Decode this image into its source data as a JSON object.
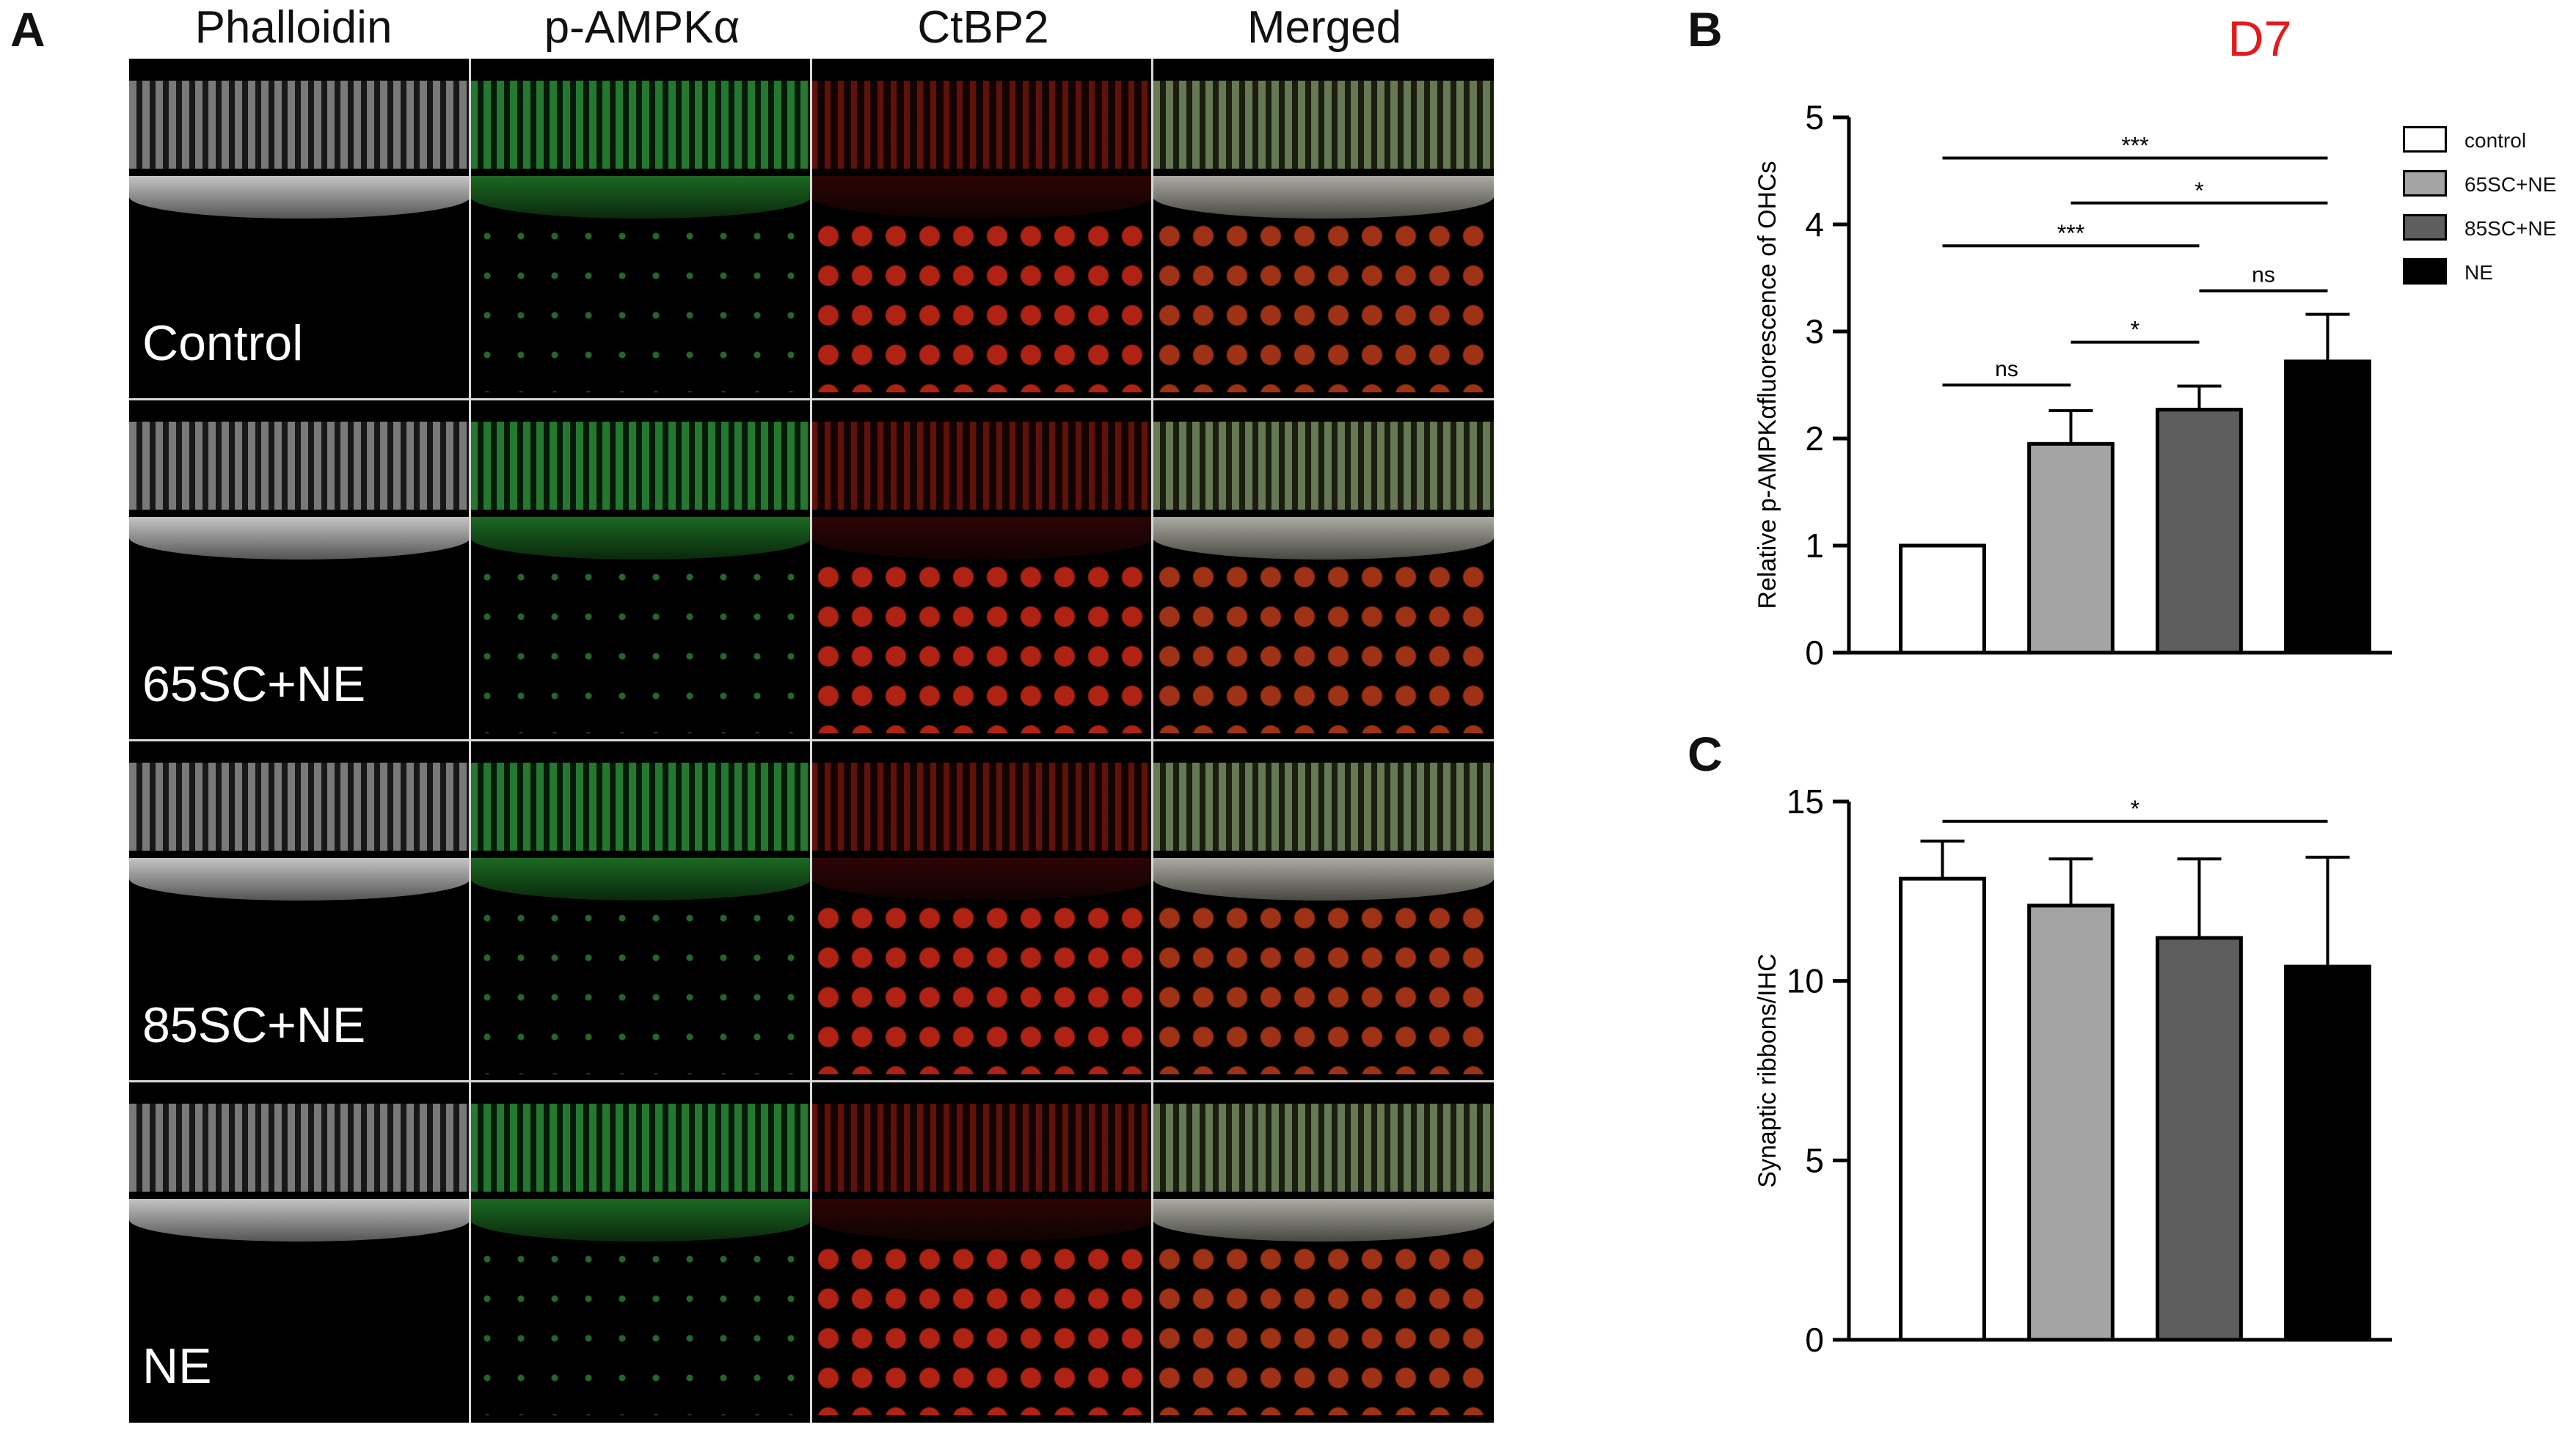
{
  "panel_a": {
    "letter": "A",
    "columns": [
      {
        "header": "Phalloidin",
        "channel": "gray",
        "color": "#d9d9d9"
      },
      {
        "header": "p-AMPKα",
        "channel": "green",
        "color": "#33c24a"
      },
      {
        "header": "CtBP2",
        "channel": "red",
        "color": "#e8321e"
      },
      {
        "header": "Merged",
        "channel": "merged",
        "color": "#c0b070"
      }
    ],
    "rows": [
      {
        "label": "Control"
      },
      {
        "label": "65SC+NE"
      },
      {
        "label": "85SC+NE"
      },
      {
        "label": "NE"
      }
    ]
  },
  "panel_b": {
    "letter": "B",
    "title": "D7",
    "title_color": "#e41a1c"
  },
  "panel_c": {
    "letter": "C"
  },
  "legend": [
    {
      "label": "control",
      "color": "#ffffff"
    },
    {
      "label": "65SC+NE",
      "color": "#a4a4a4"
    },
    {
      "label": "85SC+NE",
      "color": "#5e5e5e"
    },
    {
      "label": "NE",
      "color": "#000000"
    }
  ],
  "chart_data": [
    {
      "type": "bar",
      "categories": [
        "control",
        "65SC+NE",
        "85SC+NE",
        "NE"
      ],
      "values": [
        1.0,
        1.95,
        2.27,
        2.72
      ],
      "errors": [
        0,
        0.31,
        0.22,
        0.44
      ],
      "ylabel": "Relative p-AMPKαfluorescence of OHCs",
      "ylim": [
        0,
        5
      ],
      "yticks": [
        0,
        1,
        2,
        3,
        4,
        5
      ],
      "colors": [
        "#ffffff",
        "#a4a4a4",
        "#5e5e5e",
        "#000000"
      ],
      "annotations": [
        {
          "from": 0,
          "to": 1,
          "y": 2.5,
          "text": "ns"
        },
        {
          "from": 1,
          "to": 2,
          "y": 2.9,
          "text": "*"
        },
        {
          "from": 2,
          "to": 3,
          "y": 3.38,
          "text": "ns"
        },
        {
          "from": 0,
          "to": 2,
          "y": 3.8,
          "text": "***"
        },
        {
          "from": 1,
          "to": 3,
          "y": 4.2,
          "text": "*"
        },
        {
          "from": 0,
          "to": 3,
          "y": 4.62,
          "text": "***"
        }
      ]
    },
    {
      "type": "bar",
      "categories": [
        "control",
        "65SC+NE",
        "85SC+NE",
        "NE"
      ],
      "values": [
        12.85,
        12.1,
        11.2,
        10.4
      ],
      "errors": [
        1.05,
        1.3,
        2.2,
        3.05
      ],
      "ylabel": "Synaptic ribbons/IHC",
      "ylim": [
        0,
        15
      ],
      "yticks": [
        0,
        5,
        10,
        15
      ],
      "colors": [
        "#ffffff",
        "#a4a4a4",
        "#5e5e5e",
        "#000000"
      ],
      "annotations": [
        {
          "from": 0,
          "to": 3,
          "y": 14.45,
          "text": "*"
        }
      ]
    }
  ]
}
